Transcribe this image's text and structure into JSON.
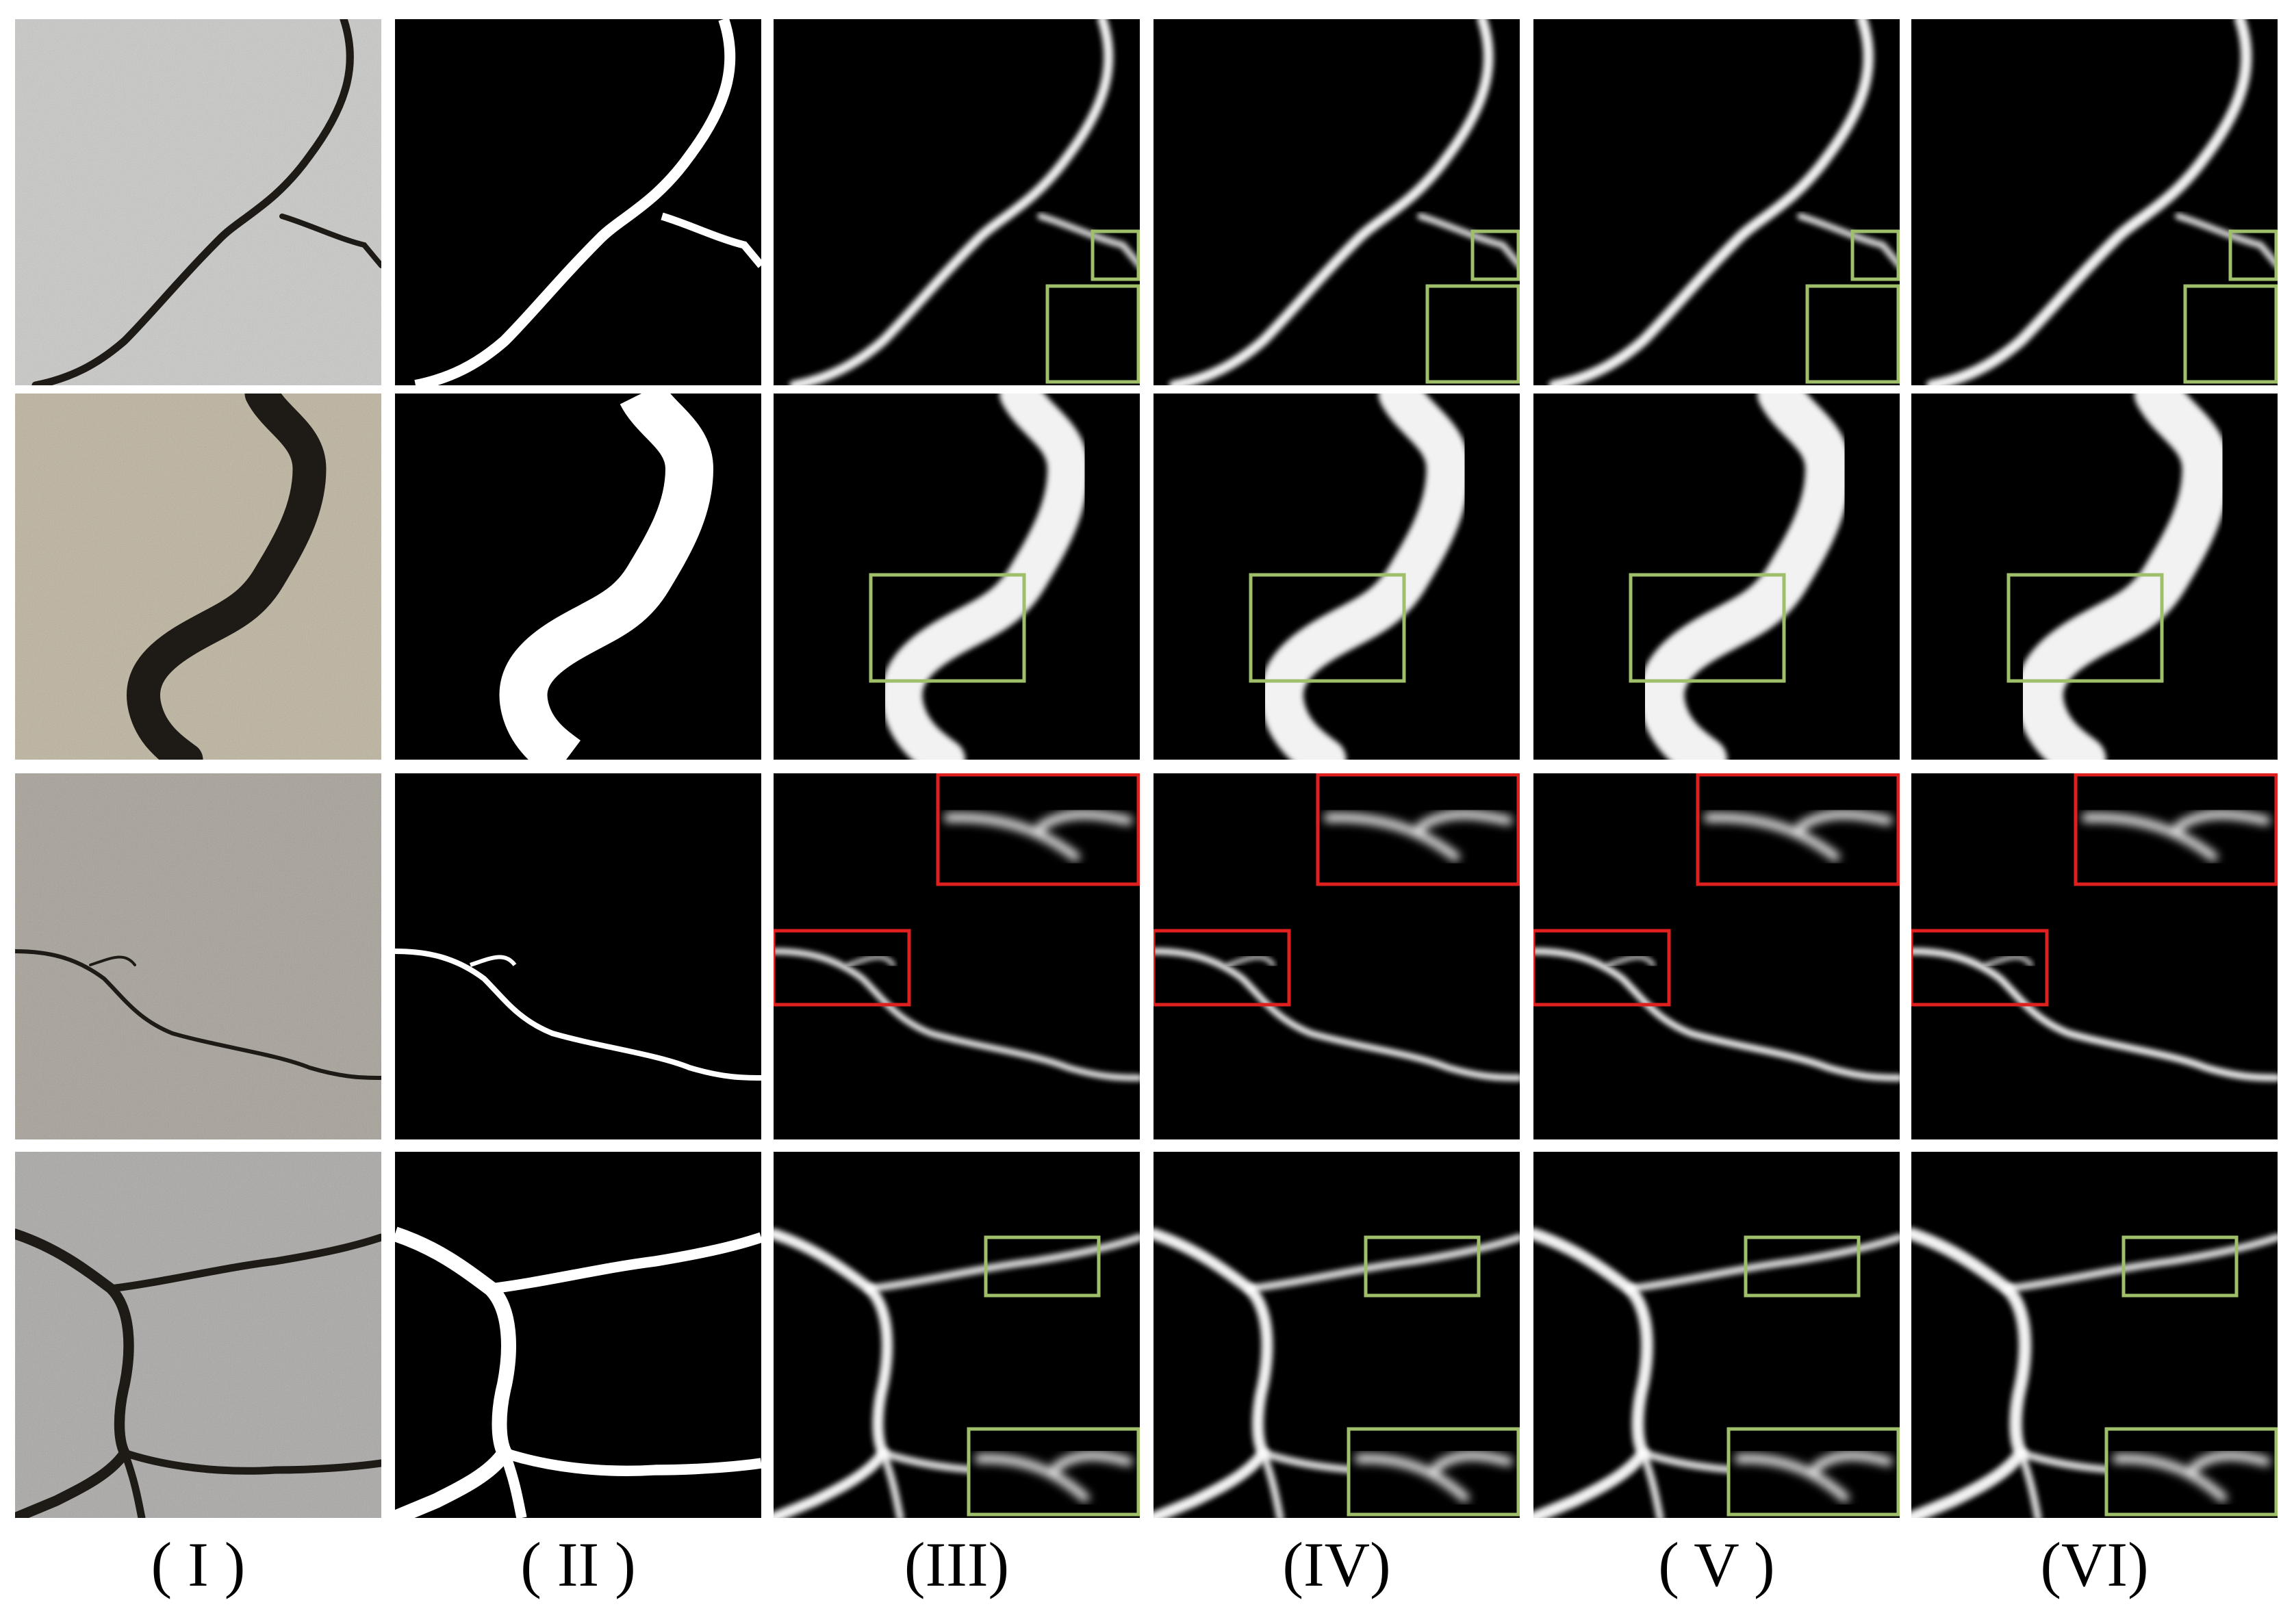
{
  "figure": {
    "columns": [
      {
        "label": "( I )",
        "kind": "photo"
      },
      {
        "label": "( II )",
        "kind": "ground-truth"
      },
      {
        "label": "(III)",
        "kind": "prediction"
      },
      {
        "label": "(IV)",
        "kind": "prediction"
      },
      {
        "label": "( V )",
        "kind": "prediction"
      },
      {
        "label": "(VI)",
        "kind": "prediction"
      }
    ],
    "rows": [
      {
        "name": "row-1",
        "photo_color": "#c9c9c7",
        "highlight_color": "#9fbf6a"
      },
      {
        "name": "row-2",
        "photo_color": "#bdb49e",
        "highlight_color": "#9fbf6a"
      },
      {
        "name": "row-3",
        "photo_color": "#a6a198",
        "highlight_color": "#e0201e"
      },
      {
        "name": "row-4",
        "photo_color": "#a9a8a6",
        "highlight_color": "#9fbf6a"
      }
    ],
    "colors": {
      "background": "#ffffff",
      "mask_background": "#000000",
      "crack_white": "#ffffff",
      "photo_crack": "#1e1a16",
      "green_box": "#9fbf6a",
      "red_box": "#e0201e"
    }
  }
}
